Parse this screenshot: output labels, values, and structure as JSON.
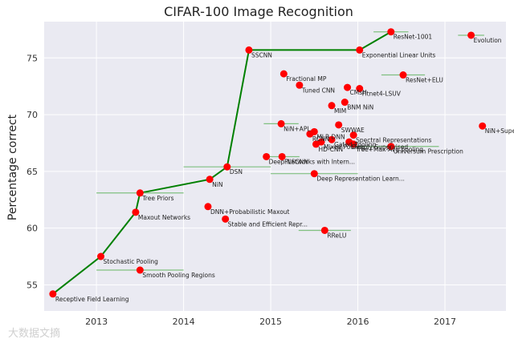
{
  "chart_data": {
    "type": "scatter",
    "title": "CIFAR-100 Image Recognition",
    "xlabel": "",
    "ylabel": "Percentage correct",
    "xlim": [
      2012.4,
      2017.7
    ],
    "ylim": [
      52.7,
      78.2
    ],
    "x_ticks": [
      2013,
      2014,
      2015,
      2016,
      2017
    ],
    "y_ticks": [
      55,
      60,
      65,
      70,
      75
    ],
    "grid": true,
    "colors": {
      "background": "#eaeaf2",
      "grid": "#ffffff",
      "point": "#ff0000",
      "frontier": "#008000",
      "error_bar": "#80c080"
    },
    "points": [
      {
        "label": "Receptive Field Learning",
        "x": 2012.5,
        "y": 54.2,
        "xerr_lo": 0,
        "xerr_hi": 0
      },
      {
        "label": "Stochastic Pooling",
        "x": 2013.05,
        "y": 57.5,
        "xerr_lo": 0,
        "xerr_hi": 0
      },
      {
        "label": "Smooth Pooling Regions",
        "x": 2013.5,
        "y": 56.3,
        "xerr_lo": 0.5,
        "xerr_hi": 0.5
      },
      {
        "label": "Maxout Networks",
        "x": 2013.45,
        "y": 61.4,
        "xerr_lo": 0,
        "xerr_hi": 0
      },
      {
        "label": "Tree Priors",
        "x": 2013.5,
        "y": 63.1,
        "xerr_lo": 0.5,
        "xerr_hi": 0.5
      },
      {
        "label": "NiN",
        "x": 2014.3,
        "y": 64.3,
        "xerr_lo": 0,
        "xerr_hi": 0
      },
      {
        "label": "DSN",
        "x": 2014.5,
        "y": 65.4,
        "xerr_lo": 0.5,
        "xerr_hi": 0.5
      },
      {
        "label": "DNN+Probabilistic Maxout",
        "x": 2014.28,
        "y": 61.9,
        "xerr_lo": 0,
        "xerr_hi": 0
      },
      {
        "label": "Stable and Efficient Repr...",
        "x": 2014.48,
        "y": 60.8,
        "xerr_lo": 0,
        "xerr_hi": 0
      },
      {
        "label": "SSCNN",
        "x": 2014.75,
        "y": 75.7,
        "xerr_lo": 0,
        "xerr_hi": 0
      },
      {
        "label": "Fractional MP",
        "x": 2015.15,
        "y": 73.6,
        "xerr_lo": 0,
        "xerr_hi": 0
      },
      {
        "label": "Tuned CNN",
        "x": 2015.33,
        "y": 72.6,
        "xerr_lo": 0,
        "xerr_hi": 0
      },
      {
        "label": "CMsH",
        "x": 2015.88,
        "y": 72.4,
        "xerr_lo": 0,
        "xerr_hi": 0
      },
      {
        "label": "Fitnet4-LSUV",
        "x": 2016.02,
        "y": 72.3,
        "xerr_lo": 0,
        "xerr_hi": 0
      },
      {
        "label": "BNM NiN",
        "x": 2015.85,
        "y": 71.1,
        "xerr_lo": 0,
        "xerr_hi": 0
      },
      {
        "label": "MIM",
        "x": 2015.7,
        "y": 70.8,
        "xerr_lo": 0,
        "xerr_hi": 0
      },
      {
        "label": "NiN+APL",
        "x": 2015.12,
        "y": 69.2,
        "xerr_lo": 0.2,
        "xerr_hi": 0.2
      },
      {
        "label": "SWWAE",
        "x": 2015.78,
        "y": 69.1,
        "xerr_lo": 0,
        "xerr_hi": 0
      },
      {
        "label": "MLR DNN",
        "x": 2015.5,
        "y": 68.5,
        "xerr_lo": 0,
        "xerr_hi": 0
      },
      {
        "label": "RCNN",
        "x": 2015.45,
        "y": 68.3,
        "xerr_lo": 0,
        "xerr_hi": 0
      },
      {
        "label": "Spectral Representations",
        "x": 2015.95,
        "y": 68.2,
        "xerr_lo": 0,
        "xerr_hi": 0
      },
      {
        "label": "Gated Pooling",
        "x": 2015.7,
        "y": 67.8,
        "xerr_lo": 0,
        "xerr_hi": 0
      },
      {
        "label": "Mixed Pooling",
        "x": 2015.58,
        "y": 67.6,
        "xerr_lo": 0,
        "xerr_hi": 0
      },
      {
        "label": "Deeply Supervised",
        "x": 2015.9,
        "y": 67.6,
        "xerr_lo": 0,
        "xerr_hi": 0
      },
      {
        "label": "Tree+Max-Avg pooling",
        "x": 2015.95,
        "y": 67.4,
        "xerr_lo": 0,
        "xerr_hi": 0
      },
      {
        "label": "HD-CNN",
        "x": 2015.52,
        "y": 67.4,
        "xerr_lo": 0,
        "xerr_hi": 0
      },
      {
        "label": "Universum Prescription",
        "x": 2016.38,
        "y": 67.2,
        "xerr_lo": 0.45,
        "xerr_hi": 0.55
      },
      {
        "label": "ResNet-1001",
        "x": 2016.38,
        "y": 77.3,
        "xerr_lo": 0.2,
        "xerr_hi": 0.2
      },
      {
        "label": "Exponential Linear Units",
        "x": 2016.02,
        "y": 75.7,
        "xerr_lo": 0,
        "xerr_hi": 0
      },
      {
        "label": "ResNet+ELU",
        "x": 2016.52,
        "y": 73.5,
        "xerr_lo": 0.25,
        "xerr_hi": 0.25
      },
      {
        "label": "Evolution",
        "x": 2017.3,
        "y": 77.0,
        "xerr_lo": 0.15,
        "xerr_hi": 0.15
      },
      {
        "label": "NiN+Superclass+CDJ",
        "x": 2017.43,
        "y": 69.0,
        "xerr_lo": 0,
        "xerr_hi": 0
      },
      {
        "label": "Deep Networks with Intern...",
        "x": 2014.95,
        "y": 66.3,
        "xerr_lo": 0,
        "xerr_hi": 0
      },
      {
        "label": "FLSCNN",
        "x": 2015.13,
        "y": 66.3,
        "xerr_lo": 0.2,
        "xerr_hi": 0.2
      },
      {
        "label": "Deep Representation Learn...",
        "x": 2015.5,
        "y": 64.8,
        "xerr_lo": 0.5,
        "xerr_hi": 0.5
      },
      {
        "label": "RReLU",
        "x": 2015.62,
        "y": 59.8,
        "xerr_lo": 0.3,
        "xerr_hi": 0.3
      }
    ],
    "frontier": [
      [
        2012.5,
        54.2
      ],
      [
        2013.05,
        57.5
      ],
      [
        2013.45,
        61.4
      ],
      [
        2013.5,
        63.1
      ],
      [
        2014.3,
        64.3
      ],
      [
        2014.5,
        65.4
      ],
      [
        2014.75,
        75.7
      ],
      [
        2016.02,
        75.7
      ],
      [
        2016.38,
        77.3
      ]
    ]
  },
  "watermark": "大数据文摘"
}
